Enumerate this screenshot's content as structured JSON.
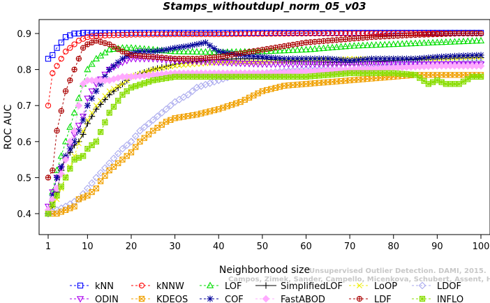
{
  "chart_data": {
    "type": "line",
    "title": "Stamps_withoutdupl_norm_05_v03",
    "xlabel": "Neighborhood size",
    "ylabel": "ROC AUC",
    "xlim": [
      1,
      100
    ],
    "ylim": [
      0.4,
      0.9
    ],
    "x_ticks": [
      1,
      10,
      20,
      30,
      40,
      50,
      60,
      70,
      80,
      90,
      100
    ],
    "y_ticks": [
      0.4,
      0.5,
      0.6,
      0.7,
      0.8,
      0.9
    ],
    "grid": false,
    "legend_position": "bottom",
    "watermark": [
      "Unsupervised Outlier Detection. DAMI, 2015.",
      "Campos, Zimek, Sander, Campello, Micenkova, Schubert, Assent, Houle"
    ],
    "series": [
      {
        "name": "kNN",
        "color": "#0000ff",
        "marker": "square",
        "dash": "3,3",
        "x": [
          1,
          2,
          3,
          4,
          5,
          6,
          7,
          8,
          9,
          10,
          12,
          15,
          20,
          30,
          40,
          50,
          60,
          70,
          80,
          90,
          100
        ],
        "y": [
          0.83,
          0.84,
          0.86,
          0.875,
          0.89,
          0.895,
          0.9,
          0.9,
          0.902,
          0.902,
          0.902,
          0.902,
          0.902,
          0.902,
          0.902,
          0.902,
          0.902,
          0.902,
          0.902,
          0.902,
          0.902
        ]
      },
      {
        "name": "kNNW",
        "color": "#ff0000",
        "marker": "circle",
        "dash": "3,3",
        "x": [
          1,
          2,
          3,
          4,
          5,
          6,
          7,
          8,
          9,
          10,
          11,
          12,
          15,
          20,
          30,
          40,
          50,
          60,
          70,
          80,
          90,
          100
        ],
        "y": [
          0.7,
          0.79,
          0.81,
          0.83,
          0.85,
          0.86,
          0.87,
          0.88,
          0.885,
          0.89,
          0.892,
          0.893,
          0.895,
          0.897,
          0.898,
          0.898,
          0.899,
          0.9,
          0.9,
          0.9,
          0.9,
          0.9
        ]
      },
      {
        "name": "LOF",
        "color": "#00dd00",
        "marker": "triangle",
        "dash": "3,3",
        "x": [
          1,
          3,
          5,
          7,
          9,
          10,
          12,
          15,
          18,
          20,
          25,
          30,
          40,
          50,
          60,
          70,
          80,
          90,
          100
        ],
        "y": [
          0.4,
          0.52,
          0.6,
          0.68,
          0.76,
          0.8,
          0.83,
          0.855,
          0.86,
          0.86,
          0.855,
          0.85,
          0.848,
          0.85,
          0.855,
          0.865,
          0.87,
          0.875,
          0.88
        ]
      },
      {
        "name": "SimplifiedLOF",
        "color": "#000000",
        "marker": "plus",
        "dash": "none",
        "x": [
          1,
          2,
          3,
          4,
          5,
          6,
          7,
          8,
          9,
          10,
          12,
          15,
          18,
          20,
          25,
          30,
          35,
          40,
          45,
          50,
          55,
          60,
          65,
          70,
          75,
          80,
          85,
          90,
          95,
          100
        ],
        "y": [
          0.4,
          0.42,
          0.46,
          0.52,
          0.56,
          0.57,
          0.59,
          0.6,
          0.62,
          0.65,
          0.69,
          0.73,
          0.76,
          0.78,
          0.8,
          0.815,
          0.822,
          0.828,
          0.83,
          0.83,
          0.825,
          0.822,
          0.82,
          0.82,
          0.822,
          0.825,
          0.828,
          0.83,
          0.832,
          0.833
        ]
      },
      {
        "name": "LoOP",
        "color": "#eeee00",
        "marker": "x",
        "dash": "3,3",
        "x": [
          1,
          3,
          5,
          7,
          9,
          10,
          12,
          15,
          18,
          20,
          25,
          30,
          40,
          50,
          60,
          70,
          80,
          90,
          100
        ],
        "y": [
          0.4,
          0.44,
          0.5,
          0.56,
          0.63,
          0.66,
          0.7,
          0.74,
          0.76,
          0.78,
          0.8,
          0.81,
          0.82,
          0.82,
          0.825,
          0.83,
          0.83,
          0.83,
          0.835
        ]
      },
      {
        "name": "LDOF",
        "color": "#aaaaee",
        "marker": "diamond",
        "dash": "3,3",
        "x": [
          1,
          5,
          8,
          10,
          12,
          15,
          18,
          20,
          22,
          25,
          28,
          30,
          33,
          35,
          40,
          45,
          50,
          55,
          60,
          70,
          80,
          90,
          100
        ],
        "y": [
          0.4,
          0.42,
          0.44,
          0.47,
          0.5,
          0.54,
          0.58,
          0.6,
          0.63,
          0.66,
          0.69,
          0.71,
          0.73,
          0.75,
          0.77,
          0.79,
          0.79,
          0.795,
          0.8,
          0.8,
          0.81,
          0.815,
          0.82
        ]
      },
      {
        "name": "ODIN",
        "color": "#aa00ee",
        "marker": "triangle-down",
        "dash": "3,3",
        "x": [
          1,
          3,
          5,
          7,
          9,
          10,
          12,
          15,
          18,
          20,
          25,
          30,
          40,
          50,
          60,
          70,
          80,
          90,
          100
        ],
        "y": [
          0.42,
          0.5,
          0.55,
          0.62,
          0.67,
          0.72,
          0.76,
          0.8,
          0.82,
          0.83,
          0.83,
          0.825,
          0.82,
          0.815,
          0.815,
          0.815,
          0.815,
          0.815,
          0.815
        ]
      },
      {
        "name": "KDEOS",
        "color": "#f0a000",
        "marker": "square-x",
        "dash": "3,3",
        "x": [
          1,
          3,
          5,
          7,
          8,
          10,
          12,
          13,
          15,
          18,
          20,
          22,
          25,
          28,
          30,
          35,
          40,
          45,
          50,
          55,
          60,
          65,
          70,
          75,
          80,
          85,
          90,
          95,
          100
        ],
        "y": [
          0.4,
          0.4,
          0.41,
          0.42,
          0.44,
          0.45,
          0.47,
          0.49,
          0.52,
          0.55,
          0.57,
          0.6,
          0.63,
          0.655,
          0.665,
          0.675,
          0.69,
          0.71,
          0.74,
          0.755,
          0.76,
          0.765,
          0.77,
          0.775,
          0.78,
          0.785,
          0.785,
          0.785,
          0.785
        ]
      },
      {
        "name": "COF",
        "color": "#000099",
        "marker": "asterisk",
        "dash": "3,3",
        "x": [
          1,
          3,
          5,
          7,
          9,
          10,
          12,
          15,
          18,
          20,
          22,
          25,
          28,
          30,
          33,
          35,
          37,
          40,
          45,
          50,
          55,
          60,
          65,
          70,
          75,
          80,
          85,
          90,
          95,
          100
        ],
        "y": [
          0.4,
          0.5,
          0.56,
          0.6,
          0.66,
          0.7,
          0.74,
          0.8,
          0.83,
          0.845,
          0.85,
          0.85,
          0.855,
          0.86,
          0.865,
          0.87,
          0.875,
          0.85,
          0.84,
          0.835,
          0.83,
          0.83,
          0.83,
          0.825,
          0.83,
          0.83,
          0.83,
          0.835,
          0.838,
          0.84
        ]
      },
      {
        "name": "FastABOD",
        "color": "#ffaaff",
        "marker": "diamond-filled",
        "dash": "3,3",
        "x": [
          1,
          3,
          5,
          6,
          7,
          8,
          9,
          10,
          12,
          15,
          18,
          20,
          25,
          30,
          40,
          50,
          60,
          70,
          80,
          90,
          100
        ],
        "y": [
          0.41,
          0.47,
          0.55,
          0.6,
          0.63,
          0.7,
          0.76,
          0.77,
          0.77,
          0.77,
          0.78,
          0.78,
          0.785,
          0.79,
          0.79,
          0.79,
          0.795,
          0.8,
          0.805,
          0.81,
          0.81
        ]
      },
      {
        "name": "LDF",
        "color": "#aa0000",
        "marker": "circle-plus",
        "dash": "3,3",
        "x": [
          1,
          2,
          3,
          5,
          7,
          9,
          10,
          12,
          15,
          18,
          20,
          25,
          30,
          35,
          40,
          45,
          50,
          55,
          60,
          65,
          70,
          75,
          80,
          85,
          90,
          95,
          100
        ],
        "y": [
          0.5,
          0.52,
          0.63,
          0.74,
          0.8,
          0.86,
          0.87,
          0.88,
          0.87,
          0.85,
          0.84,
          0.835,
          0.83,
          0.83,
          0.835,
          0.845,
          0.855,
          0.865,
          0.875,
          0.88,
          0.885,
          0.89,
          0.893,
          0.896,
          0.898,
          0.9,
          0.9
        ]
      },
      {
        "name": "INFLO",
        "color": "#88dd00",
        "marker": "square-star",
        "dash": "3,3",
        "x": [
          1,
          3,
          5,
          7,
          9,
          10,
          12,
          15,
          18,
          20,
          25,
          30,
          40,
          50,
          60,
          70,
          80,
          85,
          88,
          90,
          92,
          95,
          98,
          100
        ],
        "y": [
          0.4,
          0.45,
          0.5,
          0.55,
          0.56,
          0.58,
          0.6,
          0.68,
          0.73,
          0.75,
          0.77,
          0.78,
          0.78,
          0.78,
          0.78,
          0.79,
          0.79,
          0.785,
          0.76,
          0.77,
          0.76,
          0.76,
          0.78,
          0.78
        ]
      }
    ],
    "legend_order": [
      [
        "kNN",
        "kNNW",
        "LOF",
        "SimplifiedLOF",
        "LoOP",
        "LDOF"
      ],
      [
        "ODIN",
        "KDEOS",
        "COF",
        "FastABOD",
        "LDF",
        "INFLO"
      ]
    ]
  }
}
